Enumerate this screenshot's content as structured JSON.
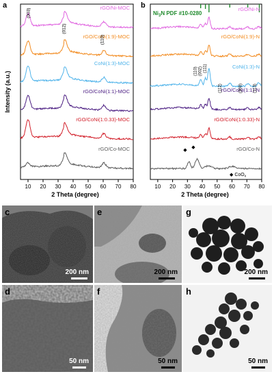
{
  "figure": {
    "panels": {
      "a": {
        "letter": "a",
        "xlabel": "2 Theta (degree)",
        "ylabel": "Intensity (a.u.)",
        "xticks": [
          "10",
          "20",
          "30",
          "40",
          "50",
          "60",
          "70",
          "80"
        ],
        "peak_labels": [
          "(003)",
          "(012)",
          "(110)"
        ],
        "series": [
          {
            "name": "rGO/Ni-MOC",
            "color": "#e066e0"
          },
          {
            "name": "rGO/CoNi(1:9)-MOC",
            "color": "#f28a1e"
          },
          {
            "name": "CoNi(1:3)-MOC",
            "color": "#4fb3ea"
          },
          {
            "name": "rGO/CoNi(1:1)-MOC",
            "color": "#4b1d82"
          },
          {
            "name": "rGO/CoNi(1:0.33)-MOC",
            "color": "#d21f2a"
          },
          {
            "name": "rGO/Co-MOC",
            "color": "#5a5a5a"
          }
        ]
      },
      "b": {
        "letter": "b",
        "ref_label": "Ni3N PDF #10-0280",
        "ref_prefix": "Ni",
        "ref_sub": "3",
        "ref_suffix": "N PDF #10-0280",
        "xlabel": "2 Theta (degree)",
        "xticks": [
          "10",
          "20",
          "30",
          "40",
          "50",
          "60",
          "70",
          "80"
        ],
        "peak_labels": [
          "(110)",
          "(002)",
          "(111)",
          "(112)",
          "(300)",
          "(113)"
        ],
        "legend_marker": "CoOx",
        "legend_prefix": "CoO",
        "legend_sub": "x",
        "series": [
          {
            "name": "rGO/Ni-N",
            "color": "#e066e0"
          },
          {
            "name": "rGO/CoNi(1:9)-N",
            "color": "#f28a1e"
          },
          {
            "name": "CoNi(1:3)-N",
            "color": "#4fb3ea"
          },
          {
            "name": "rGO/CoNi(1:1)-N",
            "color": "#4b1d82"
          },
          {
            "name": "rGO/CoNi(1:0.33)-N",
            "color": "#d21f2a"
          },
          {
            "name": "rGO/Co-N",
            "color": "#5a5a5a"
          }
        ]
      },
      "tem": [
        {
          "letter": "c",
          "scale": "200 nm"
        },
        {
          "letter": "e",
          "scale": "200 nm"
        },
        {
          "letter": "g",
          "scale": "200 nm"
        },
        {
          "letter": "d",
          "scale": "50 nm"
        },
        {
          "letter": "f",
          "scale": "50 nm"
        },
        {
          "letter": "h",
          "scale": "50 nm"
        }
      ]
    }
  }
}
